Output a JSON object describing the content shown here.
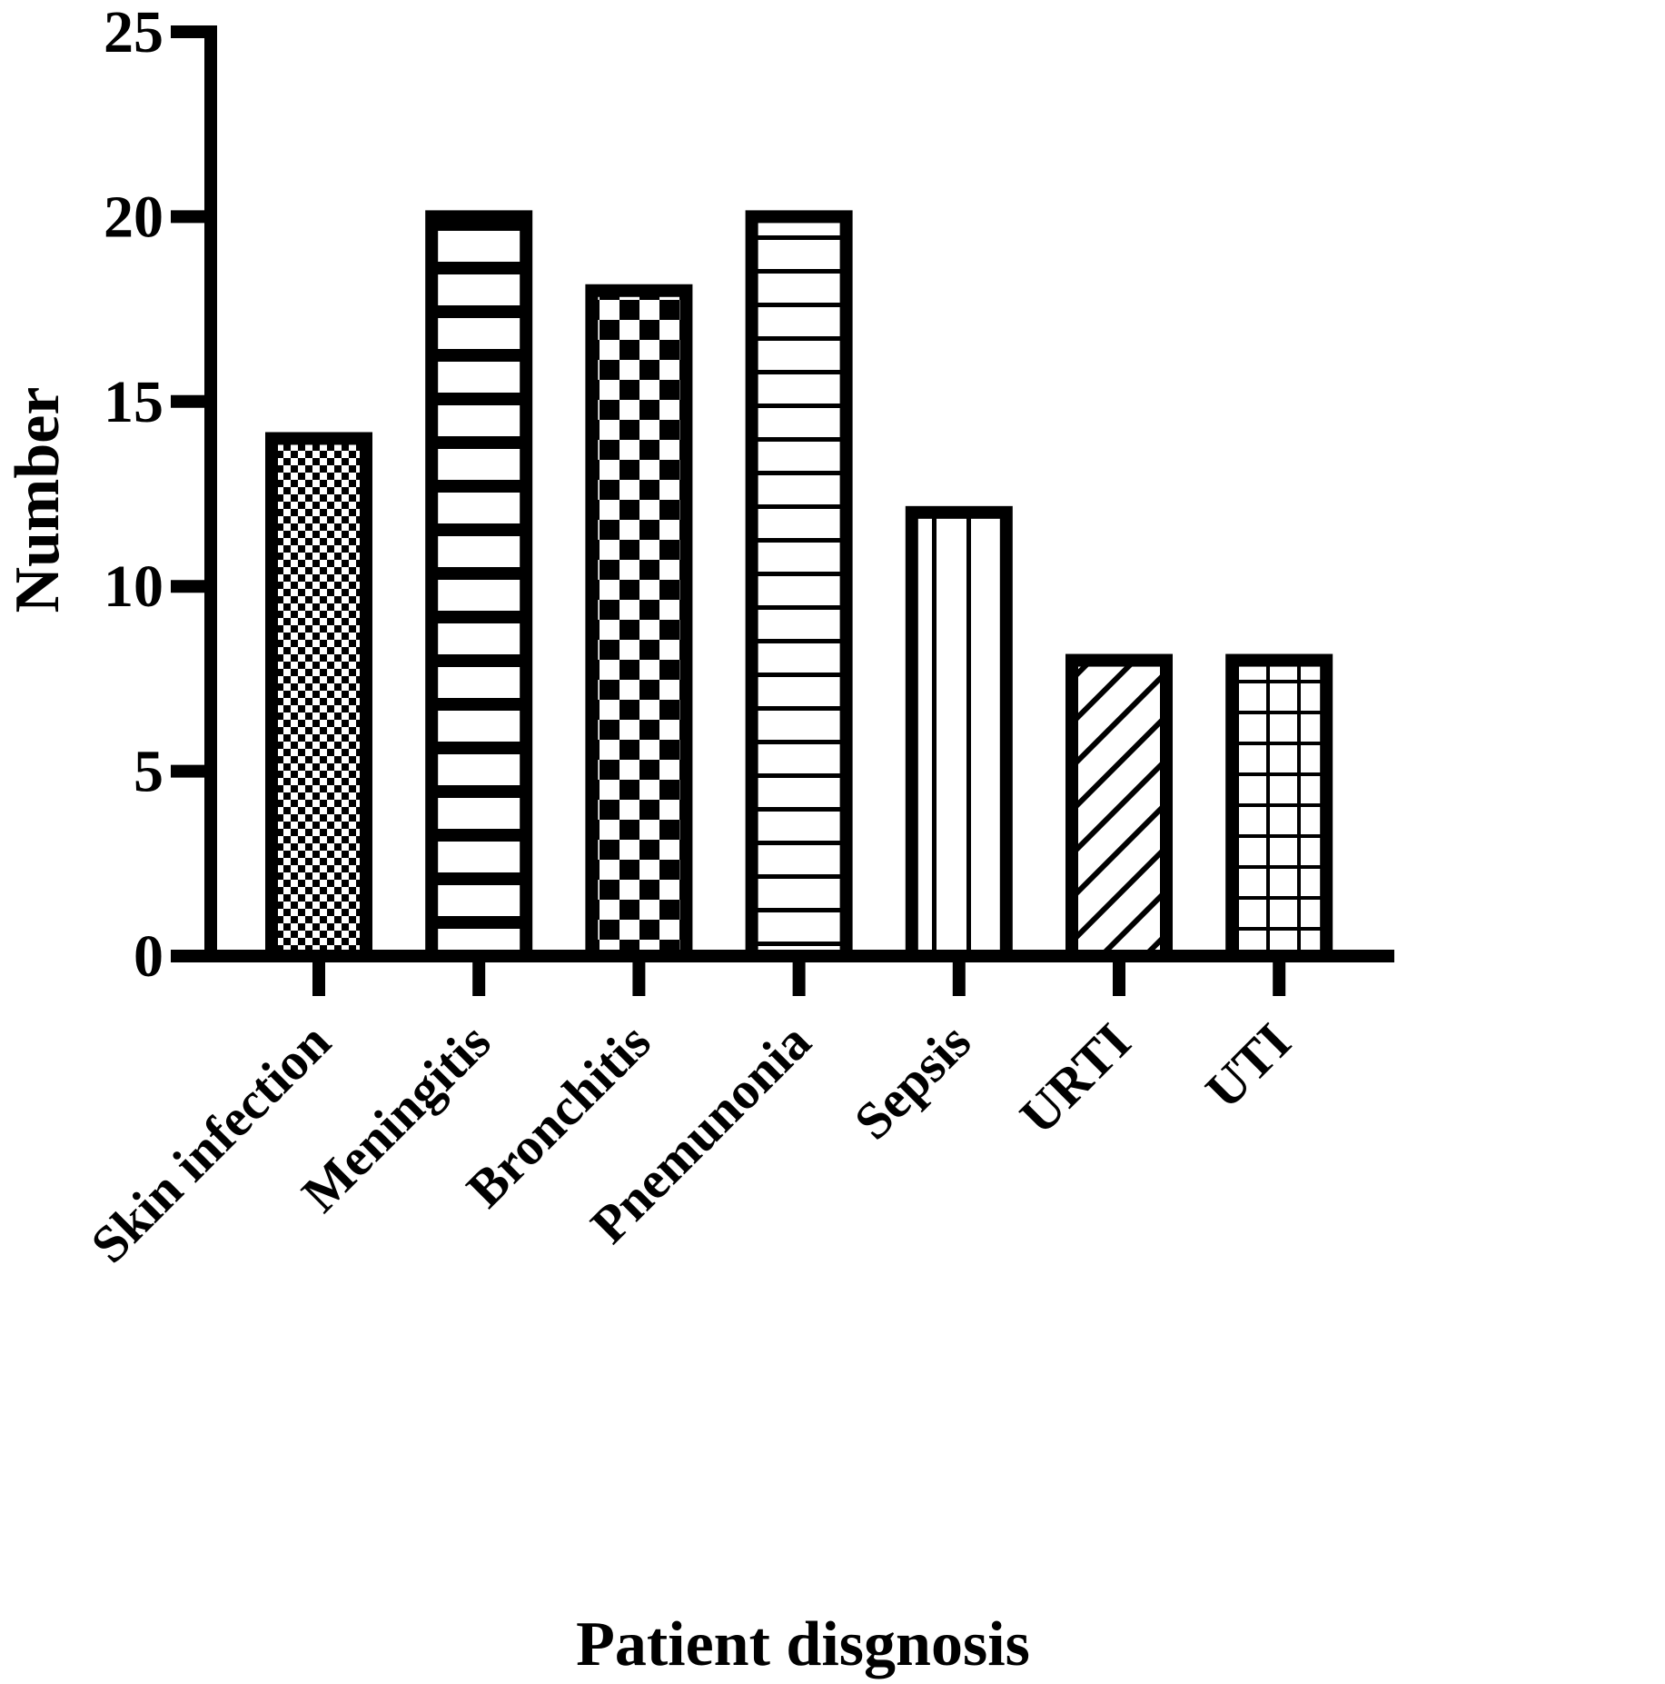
{
  "chart_data": {
    "type": "bar",
    "title": "",
    "xlabel": "Patient disgnosis",
    "ylabel": "Number",
    "categories": [
      "Skin infection",
      "Meningitis",
      "Bronchitis",
      "Pnemunonia",
      "Sepsis",
      "URTI",
      "UTI"
    ],
    "values": [
      14,
      20,
      18,
      20,
      12,
      8,
      8
    ],
    "patterns": [
      "fine-checker",
      "thick-horizontal",
      "checker",
      "thin-horizontal",
      "vertical",
      "diagonal",
      "grid"
    ],
    "yticks": [
      0,
      5,
      10,
      15,
      20,
      25
    ],
    "ylim": [
      0,
      25
    ],
    "grid": false,
    "legend": "none",
    "colors": {
      "ink": "#000000",
      "background": "#ffffff"
    }
  }
}
